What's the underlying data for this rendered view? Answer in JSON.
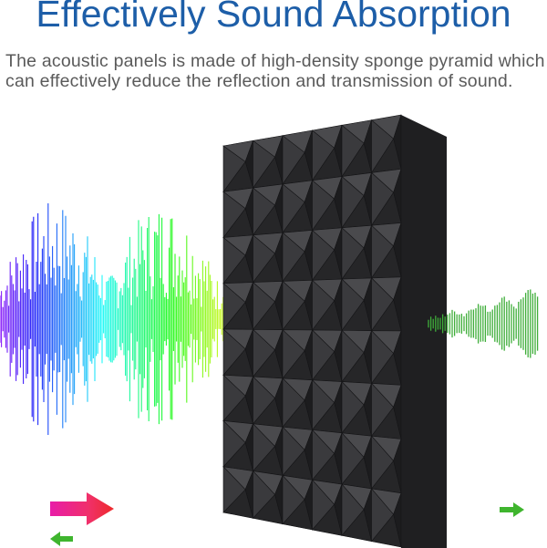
{
  "header": {
    "title": "Effectively Sound Absorption",
    "description": "The acoustic panels is made of high-density sponge pyramid which can effectively reduce the reflection and transmission of sound."
  },
  "colors": {
    "title": "#1d5ea8",
    "text": "#5a5a5a",
    "panel": "#2b2b2d",
    "reflected_wave": "#3fae3a",
    "incoming_arrow": "#e0168c",
    "outgoing_arrow": "#3fb52e"
  },
  "illustration": {
    "icons": [
      "incoming-sound-wave",
      "acoustic-foam-panel",
      "transmitted-sound-wave",
      "incoming-arrow",
      "reflected-arrow",
      "transmitted-arrow"
    ]
  }
}
